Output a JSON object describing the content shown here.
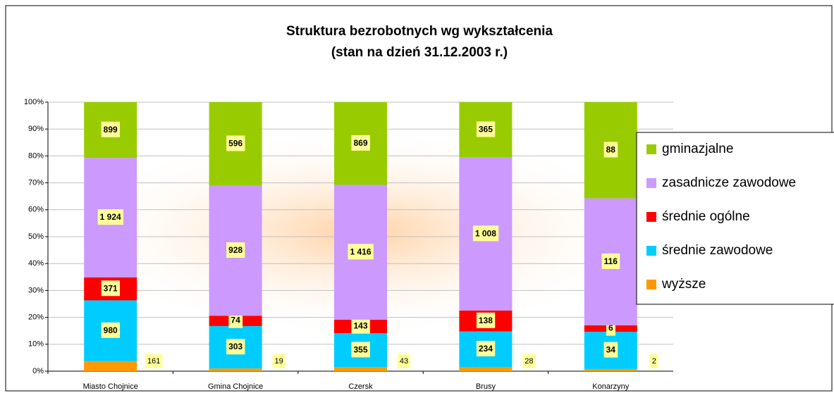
{
  "chart_data": {
    "type": "stacked_bar_100",
    "title": "Struktura bezrobotnych wg wykształcenia",
    "subtitle": "(stan na dzień 31.12.2003 r.)",
    "categories": [
      "Miasto Chojnice",
      "Gmina Chojnice",
      "Czersk",
      "Brusy",
      "Konarzyny"
    ],
    "series": [
      {
        "name": "wyższe",
        "color": "#ff9900",
        "values": [
          161,
          19,
          43,
          28,
          2
        ]
      },
      {
        "name": "średnie zawodowe",
        "color": "#00ccff",
        "values": [
          980,
          303,
          355,
          234,
          34
        ]
      },
      {
        "name": "średnie ogólne",
        "color": "#ff0000",
        "values": [
          371,
          74,
          143,
          138,
          6
        ]
      },
      {
        "name": "zasadnicze zawodowe",
        "color": "#cc99ff",
        "values": [
          1924,
          928,
          1416,
          1008,
          116
        ],
        "value_labels": [
          "1 924",
          "928",
          "1 416",
          "1 008",
          "116"
        ]
      },
      {
        "name": "gminazjalne",
        "color": "#99cc00",
        "values": [
          899,
          596,
          869,
          365,
          88
        ]
      }
    ],
    "ylim": [
      0,
      100
    ],
    "yticks": [
      {
        "value": 0,
        "label": "0%"
      },
      {
        "value": 10,
        "label": "10%"
      },
      {
        "value": 20,
        "label": "20%"
      },
      {
        "value": 30,
        "label": "30%"
      },
      {
        "value": 40,
        "label": "40%"
      },
      {
        "value": 50,
        "label": "50%"
      },
      {
        "value": 60,
        "label": "60%"
      },
      {
        "value": 70,
        "label": "70%"
      },
      {
        "value": 80,
        "label": "80%"
      },
      {
        "value": 90,
        "label": "90%"
      },
      {
        "value": 100,
        "label": "100%"
      }
    ],
    "grid": true,
    "legend": "right"
  }
}
